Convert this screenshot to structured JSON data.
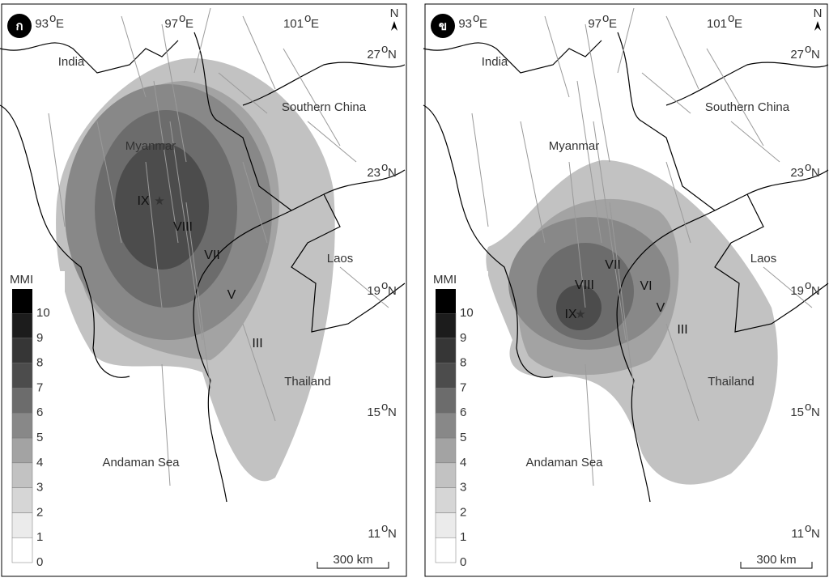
{
  "degree_symbol": "o",
  "north": "N",
  "legend": {
    "title": "MMI",
    "ticks": [
      0,
      1,
      2,
      3,
      4,
      5,
      6,
      7,
      8,
      9,
      10
    ]
  },
  "scale_bar": "300 km",
  "longitudes": [
    {
      "value": "93",
      "hemisphere": "E"
    },
    {
      "value": "97",
      "hemisphere": "E"
    },
    {
      "value": "101",
      "hemisphere": "E"
    }
  ],
  "latitudes": [
    {
      "value": "27",
      "hemisphere": "N"
    },
    {
      "value": "23",
      "hemisphere": "N"
    },
    {
      "value": "19",
      "hemisphere": "N"
    },
    {
      "value": "15",
      "hemisphere": "N"
    },
    {
      "value": "11",
      "hemisphere": "N"
    }
  ],
  "places": [
    "India",
    "Southern China",
    "Myanmar",
    "Laos",
    "Thailand",
    "Andaman Sea"
  ],
  "panels": [
    {
      "badge": "ก",
      "intensities": [
        "IX",
        "VIII",
        "VII",
        "V",
        "III"
      ]
    },
    {
      "badge": "ข",
      "intensities": [
        "IX",
        "VIII",
        "VII",
        "VI",
        "V",
        "III"
      ]
    }
  ]
}
